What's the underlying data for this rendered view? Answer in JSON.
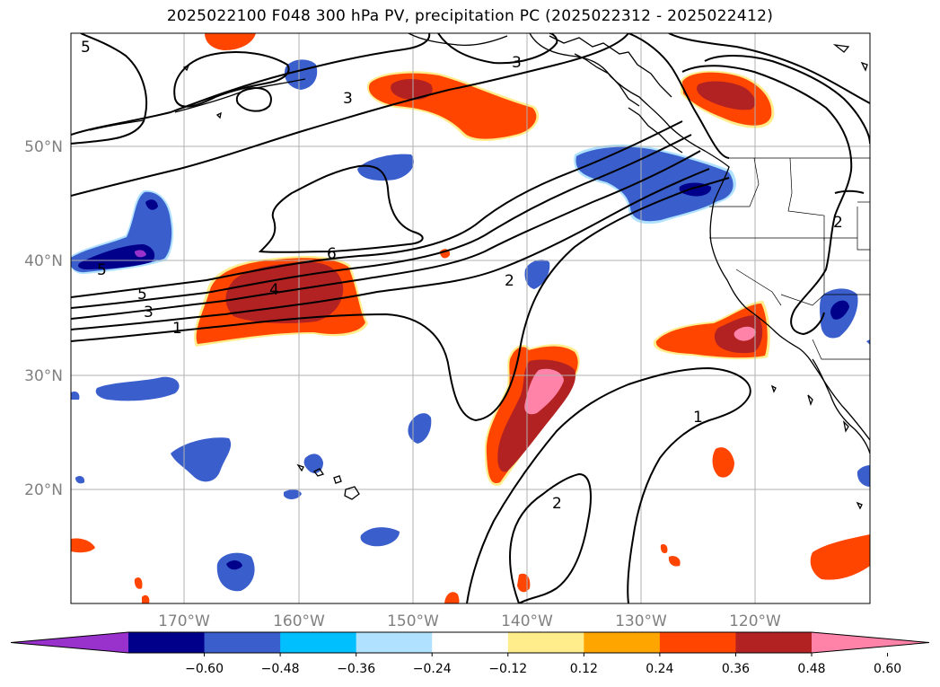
{
  "title": "2025022100 F048 300 hPa PV, precipitation PC (2025022312 - 2025022412)",
  "map": {
    "lat_labels": [
      "50°N",
      "40°N",
      "30°N",
      "20°N"
    ],
    "lon_labels": [
      "170°W",
      "160°W",
      "150°W",
      "140°W",
      "130°W",
      "120°W"
    ],
    "contour_labels": [
      "5",
      "3",
      "3",
      "6",
      "5",
      "4",
      "3",
      "2",
      "1",
      "2",
      "1",
      "2",
      "5"
    ]
  },
  "colorbar": {
    "ticks": [
      "−0.60",
      "−0.48",
      "−0.36",
      "−0.24",
      "−0.12",
      "0.12",
      "0.24",
      "0.36",
      "0.48",
      "0.60"
    ],
    "colors": [
      "#9932CC",
      "#00008B",
      "#3A5FCD",
      "#00BFFF",
      "#B0E2FF",
      "#FFFFFF",
      "#FFEC8B",
      "#FFA500",
      "#FF4500",
      "#B22222",
      "#FF83A8"
    ]
  }
}
